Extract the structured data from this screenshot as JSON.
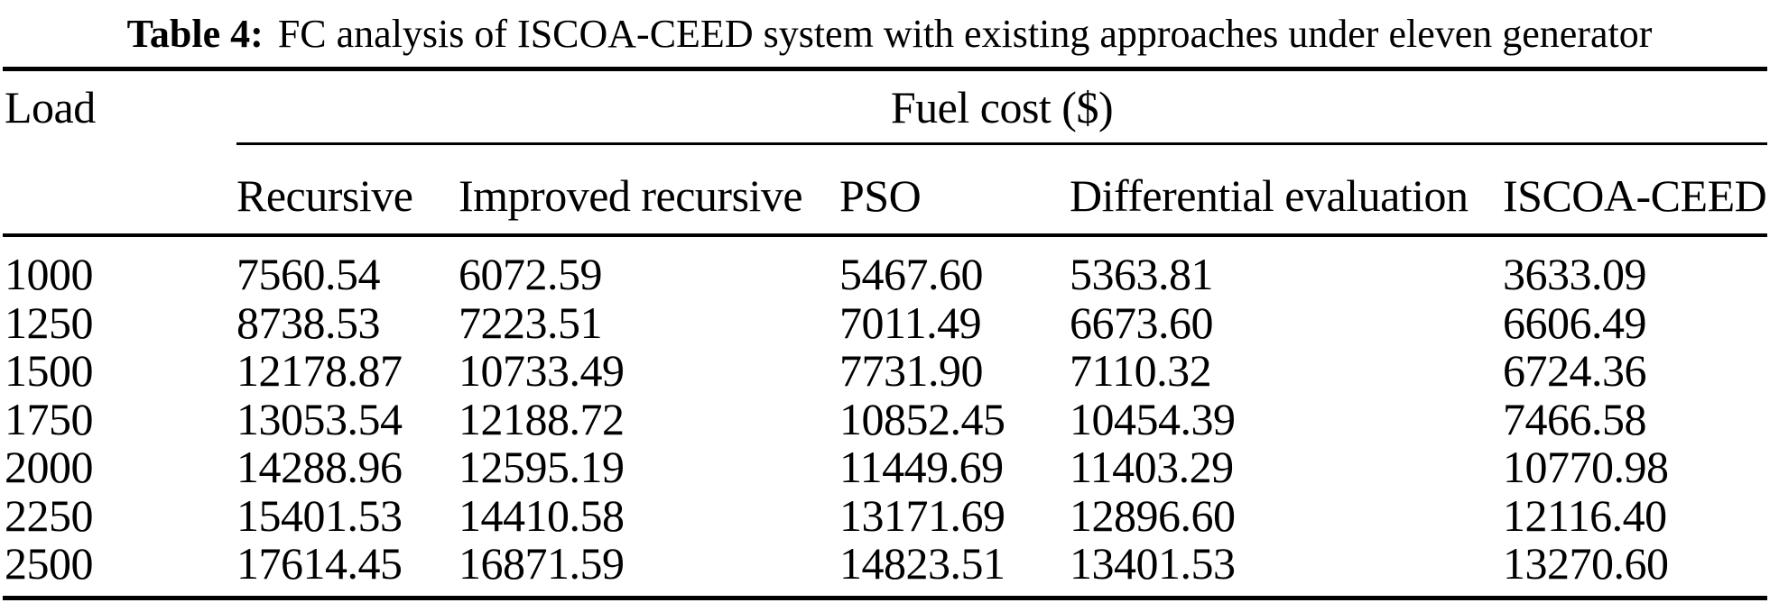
{
  "title": {
    "label": "Table 4:",
    "text": "FC analysis of ISCOA-CEED system with existing approaches under eleven generator"
  },
  "table": {
    "load_header": "Load",
    "group_header": "Fuel cost ($)",
    "columns": [
      "Recursive",
      "Improved recursive",
      "PSO",
      "Differential evaluation",
      "ISCOA-CEED"
    ],
    "rows": [
      {
        "load": "1000",
        "values": [
          "7560.54",
          "6072.59",
          "5467.60",
          "5363.81",
          "3633.09"
        ]
      },
      {
        "load": "1250",
        "values": [
          "8738.53",
          "7223.51",
          "7011.49",
          "6673.60",
          "6606.49"
        ]
      },
      {
        "load": "1500",
        "values": [
          "12178.87",
          "10733.49",
          "7731.90",
          "7110.32",
          "6724.36"
        ]
      },
      {
        "load": "1750",
        "values": [
          "13053.54",
          "12188.72",
          "10852.45",
          "10454.39",
          "7466.58"
        ]
      },
      {
        "load": "2000",
        "values": [
          "14288.96",
          "12595.19",
          "11449.69",
          "11403.29",
          "10770.98"
        ]
      },
      {
        "load": "2250",
        "values": [
          "15401.53",
          "14410.58",
          "13171.69",
          "12896.60",
          "12116.40"
        ]
      },
      {
        "load": "2500",
        "values": [
          "17614.45",
          "16871.59",
          "14823.51",
          "13401.53",
          "13270.60"
        ]
      }
    ]
  },
  "colors": {
    "text": "#000000",
    "background": "#ffffff",
    "rule": "#000000"
  }
}
